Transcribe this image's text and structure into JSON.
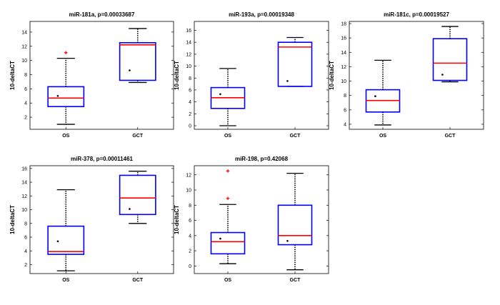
{
  "chart_data": [
    {
      "type": "box",
      "title": "miR-181a, p=0.00033687",
      "ylabel": "10-deltaCT",
      "categories": [
        "OS",
        "GCT"
      ],
      "ylim": [
        0.3,
        15.5
      ],
      "yticks": [
        2,
        4,
        6,
        8,
        10,
        12,
        14
      ],
      "boxes": [
        {
          "category": "OS",
          "whisker_low": 1.0,
          "q1": 3.5,
          "median": 4.7,
          "q3": 6.3,
          "whisker_high": 10.3,
          "mean": 5.0,
          "outliers": [
            11.1
          ]
        },
        {
          "category": "GCT",
          "whisker_low": 6.9,
          "q1": 7.2,
          "median": 12.2,
          "q3": 12.5,
          "whisker_high": 14.5,
          "mean": 8.6,
          "outliers": []
        }
      ]
    },
    {
      "type": "box",
      "title": "miR-193a, p=0.00019348",
      "ylabel": "10-deltaCT",
      "categories": [
        "OS",
        "GCT"
      ],
      "ylim": [
        -0.6,
        17.5
      ],
      "yticks": [
        0,
        2,
        4,
        6,
        8,
        10,
        12,
        14,
        16
      ],
      "boxes": [
        {
          "category": "OS",
          "whisker_low": 0.0,
          "q1": 2.9,
          "median": 4.7,
          "q3": 6.4,
          "whisker_high": 9.6,
          "mean": 5.3,
          "outliers": []
        },
        {
          "category": "GCT",
          "whisker_low": 6.6,
          "q1": 6.6,
          "median": 13.2,
          "q3": 14.0,
          "whisker_high": 14.8,
          "mean": 7.5,
          "outliers": []
        }
      ]
    },
    {
      "type": "box",
      "title": "miR-181c, p=0.00019527",
      "ylabel": "10-deltaCT",
      "categories": [
        "OS",
        "GCT"
      ],
      "ylim": [
        3.3,
        18.3
      ],
      "yticks": [
        4,
        6,
        8,
        10,
        12,
        14,
        16,
        18
      ],
      "boxes": [
        {
          "category": "OS",
          "whisker_low": 3.9,
          "q1": 5.7,
          "median": 7.3,
          "q3": 8.8,
          "whisker_high": 12.9,
          "mean": 7.9,
          "outliers": []
        },
        {
          "category": "GCT",
          "whisker_low": 9.9,
          "q1": 10.1,
          "median": 12.5,
          "q3": 15.9,
          "whisker_high": 17.6,
          "mean": 10.9,
          "outliers": []
        }
      ]
    },
    {
      "type": "box",
      "title": "miR-378, p=0.00011461",
      "ylabel": "10-deltaCT",
      "categories": [
        "OS",
        "GCT"
      ],
      "ylim": [
        0.7,
        16.4
      ],
      "yticks": [
        2,
        4,
        6,
        8,
        10,
        12,
        14,
        16
      ],
      "boxes": [
        {
          "category": "OS",
          "whisker_low": 1.1,
          "q1": 3.5,
          "median": 3.9,
          "q3": 7.6,
          "whisker_high": 12.9,
          "mean": 5.4,
          "outliers": []
        },
        {
          "category": "GCT",
          "whisker_low": 8.0,
          "q1": 9.3,
          "median": 11.7,
          "q3": 15.0,
          "whisker_high": 15.6,
          "mean": 10.1,
          "outliers": []
        }
      ]
    },
    {
      "type": "box",
      "title": "miR-198, p=0.42068",
      "ylabel": "10-deltaCT",
      "categories": [
        "OS",
        "GCT"
      ],
      "ylim": [
        -1.0,
        13.2
      ],
      "yticks": [
        0,
        2,
        4,
        6,
        8,
        10,
        12
      ],
      "boxes": [
        {
          "category": "OS",
          "whisker_low": 0.3,
          "q1": 1.6,
          "median": 3.2,
          "q3": 4.4,
          "whisker_high": 8.1,
          "mean": 3.6,
          "outliers": [
            8.9,
            12.5
          ]
        },
        {
          "category": "GCT",
          "whisker_low": -0.5,
          "q1": 2.8,
          "median": 4.0,
          "q3": 8.0,
          "whisker_high": 12.2,
          "mean": 3.3,
          "outliers": []
        }
      ]
    }
  ],
  "colors": {
    "box": "#0000ff",
    "median": "#ff0000",
    "outlier": "#ff0000",
    "whisker": "#000000",
    "mean": "#000000"
  }
}
